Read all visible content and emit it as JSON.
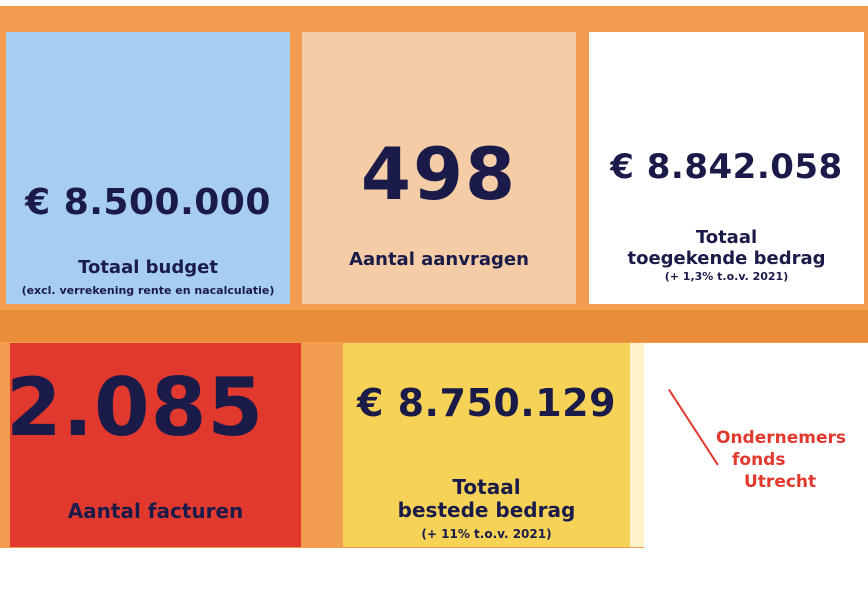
{
  "tiles": {
    "budget": {
      "amount": "€ 8.500.000",
      "label": "Totaal budget",
      "note": "(excl. verrekening rente en nacalculatie)",
      "color": "#a8cdf2"
    },
    "aanvragen": {
      "amount": "498",
      "label": "Aantal aanvragen",
      "color": "#f4cda6"
    },
    "toegekend": {
      "amount": "€ 8.842.058",
      "label_line1": "Totaal",
      "label_line2": "toegekende bedrag",
      "note": "(+ 1,3% t.o.v. 2021)",
      "color": "#ffffff"
    },
    "facturen": {
      "amount": "2.085",
      "label": "Aantal facturen",
      "color": "#e2392f"
    },
    "besteed": {
      "amount": "€ 8.750.129",
      "label_line1": "Totaal",
      "label_line2": "bestede bedrag",
      "note": "(+ 11% t.o.v. 2021)",
      "color": "#f6d257"
    }
  },
  "logo": {
    "line1": "Ondernemers",
    "line2": "fonds",
    "line3": "Utrecht",
    "color": "#e2392f"
  },
  "colors": {
    "background_orange": "#f19c4f",
    "text_navy": "#1b1b4a"
  }
}
